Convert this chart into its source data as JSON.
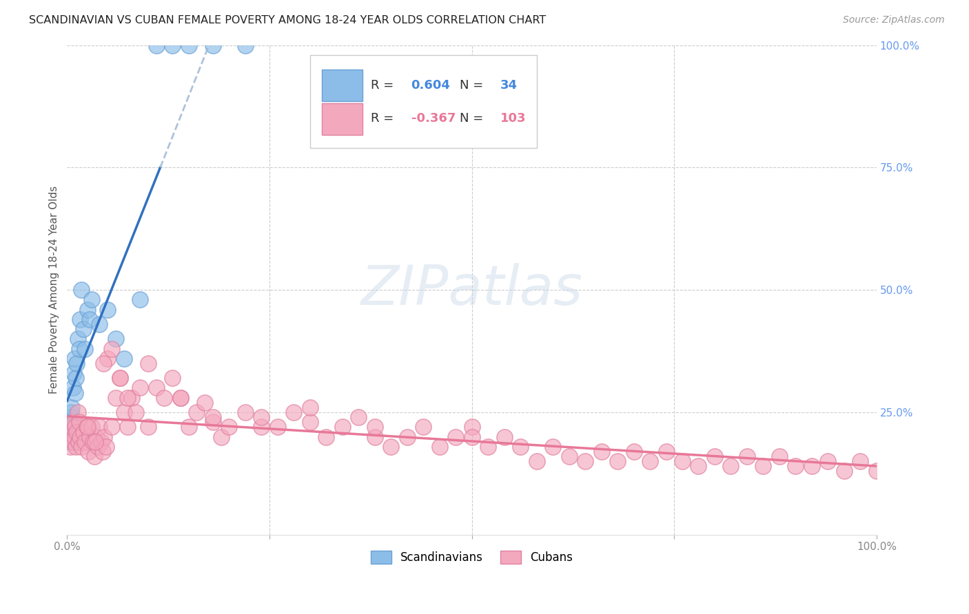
{
  "title": "SCANDINAVIAN VS CUBAN FEMALE POVERTY AMONG 18-24 YEAR OLDS CORRELATION CHART",
  "source": "Source: ZipAtlas.com",
  "ylabel": "Female Poverty Among 18-24 Year Olds",
  "xlim": [
    0,
    1
  ],
  "ylim": [
    0,
    1
  ],
  "background_color": "#ffffff",
  "scand_color": "#8bbde8",
  "scand_edge": "#6aa0d4",
  "cuban_color": "#f4a8be",
  "cuban_edge": "#e080a0",
  "line_blue": "#3070c0",
  "line_pink": "#e87898",
  "line_dashed": "#a0b8d8",
  "scand_R": 0.604,
  "scand_N": 34,
  "cuban_R": -0.367,
  "cuban_N": 103,
  "scand_x": [
    0.001,
    0.002,
    0.003,
    0.003,
    0.004,
    0.004,
    0.005,
    0.005,
    0.006,
    0.007,
    0.008,
    0.009,
    0.01,
    0.011,
    0.012,
    0.013,
    0.015,
    0.016,
    0.018,
    0.02,
    0.022,
    0.025,
    0.028,
    0.03,
    0.04,
    0.05,
    0.06,
    0.07,
    0.09,
    0.11,
    0.13,
    0.15,
    0.18,
    0.22
  ],
  "scand_y": [
    0.21,
    0.2,
    0.22,
    0.23,
    0.19,
    0.24,
    0.25,
    0.22,
    0.26,
    0.3,
    0.33,
    0.36,
    0.29,
    0.32,
    0.35,
    0.4,
    0.38,
    0.44,
    0.5,
    0.42,
    0.38,
    0.46,
    0.44,
    0.48,
    0.43,
    0.46,
    0.4,
    0.36,
    0.48,
    1.0,
    1.0,
    1.0,
    1.0,
    1.0
  ],
  "cuban_x": [
    0.003,
    0.004,
    0.005,
    0.006,
    0.007,
    0.008,
    0.009,
    0.01,
    0.011,
    0.012,
    0.013,
    0.014,
    0.015,
    0.016,
    0.018,
    0.02,
    0.022,
    0.024,
    0.026,
    0.028,
    0.03,
    0.032,
    0.034,
    0.036,
    0.038,
    0.04,
    0.042,
    0.044,
    0.046,
    0.048,
    0.05,
    0.055,
    0.06,
    0.065,
    0.07,
    0.075,
    0.08,
    0.09,
    0.1,
    0.11,
    0.12,
    0.13,
    0.14,
    0.15,
    0.16,
    0.17,
    0.18,
    0.19,
    0.2,
    0.22,
    0.24,
    0.26,
    0.28,
    0.3,
    0.32,
    0.34,
    0.36,
    0.38,
    0.4,
    0.42,
    0.44,
    0.46,
    0.48,
    0.5,
    0.52,
    0.54,
    0.56,
    0.58,
    0.6,
    0.62,
    0.64,
    0.66,
    0.68,
    0.7,
    0.72,
    0.74,
    0.76,
    0.78,
    0.8,
    0.82,
    0.84,
    0.86,
    0.88,
    0.9,
    0.92,
    0.94,
    0.96,
    0.98,
    1.0,
    0.025,
    0.035,
    0.045,
    0.055,
    0.065,
    0.075,
    0.085,
    0.1,
    0.14,
    0.18,
    0.24,
    0.3,
    0.38,
    0.5
  ],
  "cuban_y": [
    0.21,
    0.18,
    0.2,
    0.22,
    0.19,
    0.23,
    0.2,
    0.22,
    0.18,
    0.21,
    0.25,
    0.19,
    0.23,
    0.2,
    0.18,
    0.21,
    0.19,
    0.22,
    0.17,
    0.2,
    0.22,
    0.19,
    0.16,
    0.2,
    0.18,
    0.22,
    0.19,
    0.17,
    0.2,
    0.18,
    0.36,
    0.22,
    0.28,
    0.32,
    0.25,
    0.22,
    0.28,
    0.3,
    0.35,
    0.3,
    0.28,
    0.32,
    0.28,
    0.22,
    0.25,
    0.27,
    0.23,
    0.2,
    0.22,
    0.25,
    0.22,
    0.22,
    0.25,
    0.23,
    0.2,
    0.22,
    0.24,
    0.2,
    0.18,
    0.2,
    0.22,
    0.18,
    0.2,
    0.22,
    0.18,
    0.2,
    0.18,
    0.15,
    0.18,
    0.16,
    0.15,
    0.17,
    0.15,
    0.17,
    0.15,
    0.17,
    0.15,
    0.14,
    0.16,
    0.14,
    0.16,
    0.14,
    0.16,
    0.14,
    0.14,
    0.15,
    0.13,
    0.15,
    0.13,
    0.22,
    0.19,
    0.35,
    0.38,
    0.32,
    0.28,
    0.25,
    0.22,
    0.28,
    0.24,
    0.24,
    0.26,
    0.22,
    0.2
  ]
}
